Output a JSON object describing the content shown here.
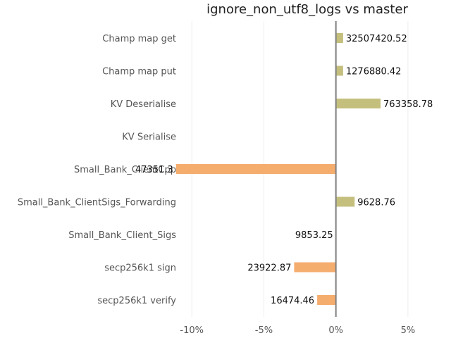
{
  "chart_data": {
    "type": "bar",
    "orientation": "horizontal",
    "title": "ignore_non_utf8_logs vs master",
    "xlabel": "",
    "ylabel": "",
    "xlim": [
      -10.5,
      7.5
    ],
    "xticks": [
      -10,
      -5,
      0,
      5
    ],
    "xtick_labels": [
      "-10%",
      "-5%",
      "0%",
      "5%"
    ],
    "grid": true,
    "legend": "none",
    "zero_line": true,
    "colors": {
      "positive": "#c4bf7d",
      "negative": "#f5ad6e",
      "zero_line": "#808080",
      "grid": "#eeeeee"
    },
    "categories": [
      "Champ map get",
      "Champ map put",
      "KV Deserialise",
      "KV Serialise",
      "Small_Bank_ClientCpp",
      "Small_Bank_ClientSigs_Forwarding",
      "Small_Bank_Client_Sigs",
      "secp256k1 sign",
      "secp256k1 verify"
    ],
    "values": [
      0.5,
      0.5,
      3.1,
      0,
      -11.1,
      1.3,
      0,
      -2.9,
      -1.3
    ],
    "labels": [
      "32507420.52",
      "1276880.42",
      "763358.78",
      "",
      "47351.3",
      "9628.76",
      "9853.25",
      "23922.87",
      "16474.46"
    ]
  }
}
